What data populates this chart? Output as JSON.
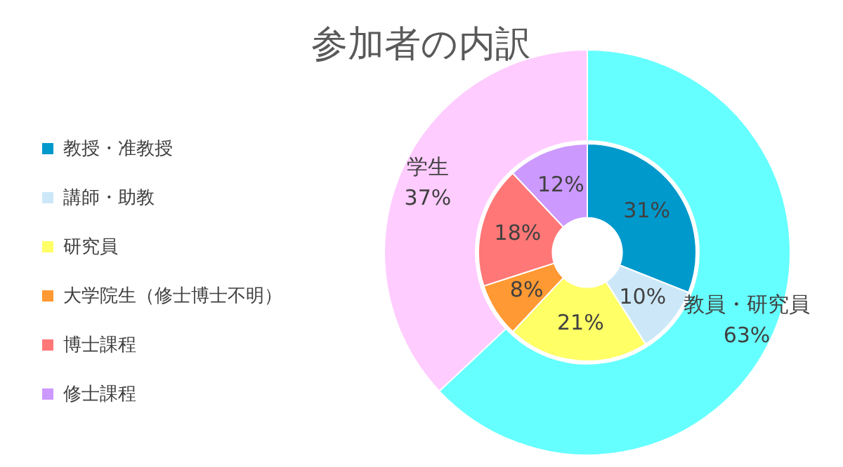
{
  "chart_data": [
    {
      "type": "donut",
      "title": "参加者の内訳",
      "legend": "left",
      "categories": [
        "教授・准教授",
        "講師・助教",
        "研究員",
        "大学院生（修士博士不明）",
        "博士課程",
        "修士課程"
      ],
      "values": [
        31,
        10,
        21,
        8,
        18,
        12
      ],
      "value_labels": [
        "31%",
        "10%",
        "21%",
        "8%",
        "18%",
        "12%"
      ],
      "colors": [
        "#0099cc",
        "#cce8f8",
        "#ffff66",
        "#ff9933",
        "#ff7777",
        "#cc99ff"
      ]
    },
    {
      "type": "donut",
      "categories": [
        "教員・研究員",
        "学生"
      ],
      "values": [
        63,
        37
      ],
      "value_labels": [
        "63%",
        "37%"
      ],
      "colors": [
        "#66ffff",
        "#ffccff"
      ]
    }
  ]
}
